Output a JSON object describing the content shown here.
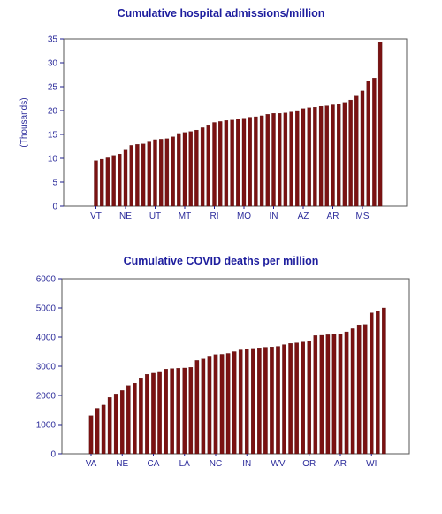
{
  "chart_data": [
    {
      "type": "bar",
      "title": "Cumulative hospital admissions/million",
      "ylabel": "(Thousands)",
      "xlabel": "",
      "ylim": [
        0,
        35
      ],
      "yticks": [
        0,
        5,
        10,
        15,
        20,
        25,
        30,
        35
      ],
      "x_tick_labels": [
        "VT",
        "NE",
        "UT",
        "MT",
        "RI",
        "MO",
        "IN",
        "AZ",
        "AR",
        "MS"
      ],
      "x_tick_positions": [
        1,
        6,
        11,
        16,
        21,
        26,
        31,
        36,
        41,
        46
      ],
      "bar_color": "#7a1212",
      "values": [
        9.5,
        9.8,
        10.1,
        10.6,
        10.9,
        11.9,
        12.7,
        12.9,
        13.0,
        13.6,
        13.9,
        14.0,
        14.1,
        14.5,
        15.2,
        15.4,
        15.6,
        15.9,
        16.4,
        17.0,
        17.5,
        17.7,
        17.9,
        18.0,
        18.2,
        18.4,
        18.6,
        18.7,
        18.9,
        19.2,
        19.4,
        19.4,
        19.5,
        19.7,
        20.0,
        20.4,
        20.6,
        20.7,
        20.9,
        21.0,
        21.2,
        21.4,
        21.7,
        22.2,
        23.2,
        24.1,
        26.2,
        26.8,
        34.3
      ]
    },
    {
      "type": "bar",
      "title": "Cumulative COVID deaths per million",
      "ylabel": "",
      "xlabel": "",
      "ylim": [
        0,
        6000
      ],
      "yticks": [
        0,
        1000,
        2000,
        3000,
        4000,
        5000,
        6000
      ],
      "x_tick_labels": [
        "VA",
        "NE",
        "CA",
        "LA",
        "NC",
        "IN",
        "WV",
        "OR",
        "AR",
        "WI"
      ],
      "x_tick_positions": [
        1,
        6,
        11,
        16,
        21,
        26,
        31,
        36,
        41,
        46
      ],
      "bar_color": "#7a1212",
      "values": [
        1310,
        1560,
        1670,
        1930,
        2050,
        2170,
        2340,
        2420,
        2600,
        2720,
        2760,
        2820,
        2900,
        2920,
        2930,
        2940,
        2960,
        3200,
        3250,
        3350,
        3400,
        3410,
        3440,
        3500,
        3560,
        3600,
        3610,
        3630,
        3650,
        3660,
        3680,
        3740,
        3780,
        3800,
        3830,
        3870,
        4050,
        4060,
        4080,
        4090,
        4100,
        4180,
        4290,
        4420,
        4430,
        4830,
        4890,
        5000
      ]
    }
  ]
}
